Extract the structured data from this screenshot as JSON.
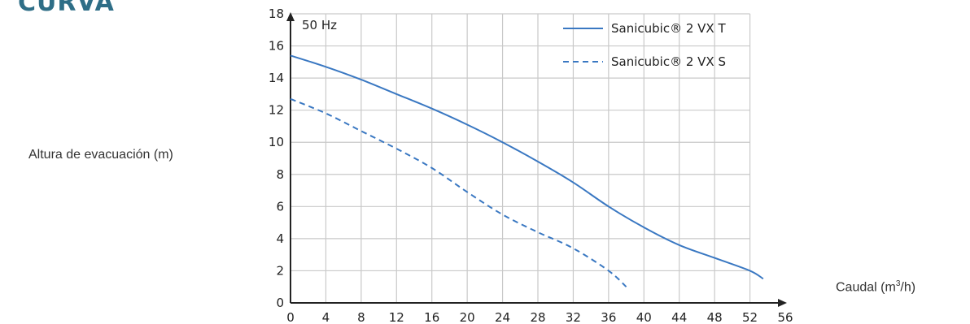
{
  "page": {
    "heading": "CURVA",
    "ylabel": "Altura de evacuación (m)",
    "xlabel_prefix": "Caudal (m",
    "xlabel_sup": "3",
    "xlabel_suffix": "/h)"
  },
  "chart_data": {
    "type": "line",
    "annotation": "50 Hz",
    "xlim": [
      0,
      56
    ],
    "ylim": [
      0,
      18
    ],
    "xticks": [
      0,
      4,
      8,
      12,
      16,
      20,
      24,
      28,
      32,
      36,
      40,
      44,
      48,
      52,
      56
    ],
    "yticks": [
      0,
      2,
      4,
      6,
      8,
      10,
      12,
      14,
      16,
      18
    ],
    "grid": true,
    "legend_position": "top-right",
    "colors": {
      "line": "#3a78c2",
      "grid": "#c9c9c9",
      "axis": "#222222",
      "heading": "#2e6e87"
    },
    "series": [
      {
        "name": "Sanicubic® 2 VX T",
        "style": "solid",
        "points": [
          [
            0,
            15.4
          ],
          [
            4,
            14.7
          ],
          [
            8,
            13.9
          ],
          [
            12,
            13.0
          ],
          [
            16,
            12.1
          ],
          [
            20,
            11.1
          ],
          [
            24,
            10.0
          ],
          [
            28,
            8.8
          ],
          [
            32,
            7.5
          ],
          [
            36,
            6.0
          ],
          [
            40,
            4.7
          ],
          [
            44,
            3.6
          ],
          [
            48,
            2.8
          ],
          [
            52,
            2.0
          ],
          [
            53.5,
            1.5
          ]
        ]
      },
      {
        "name": "Sanicubic® 2 VX S",
        "style": "dashed",
        "points": [
          [
            0,
            12.7
          ],
          [
            4,
            11.8
          ],
          [
            8,
            10.7
          ],
          [
            12,
            9.6
          ],
          [
            16,
            8.4
          ],
          [
            20,
            6.9
          ],
          [
            24,
            5.5
          ],
          [
            28,
            4.4
          ],
          [
            32,
            3.4
          ],
          [
            36,
            2.0
          ],
          [
            38,
            1.0
          ]
        ]
      }
    ]
  }
}
